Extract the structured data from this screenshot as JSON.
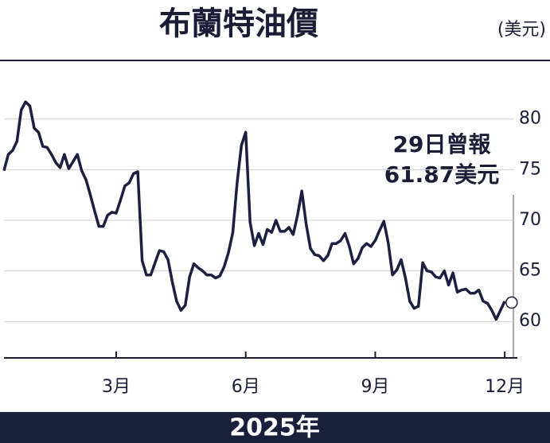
{
  "chart_data": {
    "type": "line",
    "title": "布蘭特油價",
    "unit": "(美元)",
    "annotations": [
      "29日曾報",
      "61.87美元"
    ],
    "footer": "2025年",
    "color": "#1c1f3f",
    "grid": true,
    "xlim": [
      0.4,
      12.2
    ],
    "xticks": [
      {
        "value": 3,
        "label": "3月"
      },
      {
        "value": 6,
        "label": "6月"
      },
      {
        "value": 9,
        "label": "9月"
      },
      {
        "value": 12,
        "label": "12月"
      }
    ],
    "ylim": [
      56.4,
      84.3
    ],
    "yticks": [
      60,
      65,
      70,
      75,
      80
    ],
    "highlight": {
      "x": 12.16,
      "value": 61.87
    },
    "x": [
      0.4,
      0.5,
      0.6,
      0.7,
      0.8,
      0.9,
      1.0,
      1.1,
      1.2,
      1.3,
      1.4,
      1.5,
      1.6,
      1.7,
      1.8,
      1.9,
      2.0,
      2.1,
      2.2,
      2.3,
      2.4,
      2.5,
      2.6,
      2.7,
      2.8,
      2.9,
      3.0,
      3.1,
      3.2,
      3.3,
      3.4,
      3.5,
      3.6,
      3.7,
      3.8,
      3.9,
      4.0,
      4.1,
      4.2,
      4.3,
      4.4,
      4.5,
      4.6,
      4.7,
      4.8,
      4.9,
      5.0,
      5.1,
      5.2,
      5.3,
      5.4,
      5.5,
      5.6,
      5.7,
      5.8,
      5.9,
      6.0,
      6.1,
      6.2,
      6.3,
      6.4,
      6.5,
      6.6,
      6.7,
      6.8,
      6.9,
      7.0,
      7.1,
      7.2,
      7.3,
      7.4,
      7.5,
      7.6,
      7.7,
      7.8,
      7.9,
      8.0,
      8.1,
      8.2,
      8.3,
      8.4,
      8.5,
      8.6,
      8.7,
      8.8,
      8.9,
      9.0,
      9.1,
      9.2,
      9.3,
      9.4,
      9.5,
      9.6,
      9.7,
      9.8,
      9.9,
      10.0,
      10.1,
      10.2,
      10.3,
      10.4,
      10.5,
      10.6,
      10.7,
      10.8,
      10.9,
      11.0,
      11.1,
      11.2,
      11.3,
      11.4,
      11.5,
      11.6,
      11.7,
      11.8,
      11.9,
      12.0
    ],
    "values": [
      74.9,
      76.5,
      76.9,
      77.8,
      80.9,
      81.7,
      81.3,
      79.1,
      78.7,
      77.3,
      77.2,
      76.5,
      75.7,
      75.2,
      76.5,
      75.1,
      75.8,
      76.5,
      74.9,
      74.0,
      72.5,
      70.9,
      69.4,
      69.4,
      70.5,
      70.8,
      70.7,
      72.0,
      73.4,
      73.7,
      74.6,
      74.8,
      66.0,
      64.6,
      64.6,
      65.8,
      67.0,
      66.9,
      66.1,
      63.9,
      62.0,
      61.1,
      61.6,
      64.4,
      65.7,
      65.3,
      65.0,
      64.6,
      64.6,
      64.3,
      64.5,
      65.4,
      66.8,
      68.8,
      73.7,
      77.4,
      78.7,
      69.8,
      67.5,
      68.7,
      67.6,
      69.1,
      68.8,
      70.0,
      68.9,
      68.9,
      69.3,
      68.6,
      70.5,
      72.9,
      69.6,
      67.2,
      66.6,
      66.5,
      66.0,
      66.5,
      67.7,
      67.7,
      68.0,
      68.7,
      67.4,
      65.7,
      66.2,
      67.3,
      67.7,
      67.4,
      68.0,
      69.0,
      69.9,
      67.8,
      64.6,
      65.1,
      66.1,
      64.3,
      62.0,
      61.3,
      61.5,
      65.8,
      65.0,
      64.9,
      64.4,
      64.3,
      65.0,
      63.6,
      64.8,
      62.9,
      63.1,
      63.2,
      62.8,
      62.8,
      63.1,
      62.0,
      61.8,
      61.1,
      60.2,
      61.1,
      62.0
    ]
  }
}
